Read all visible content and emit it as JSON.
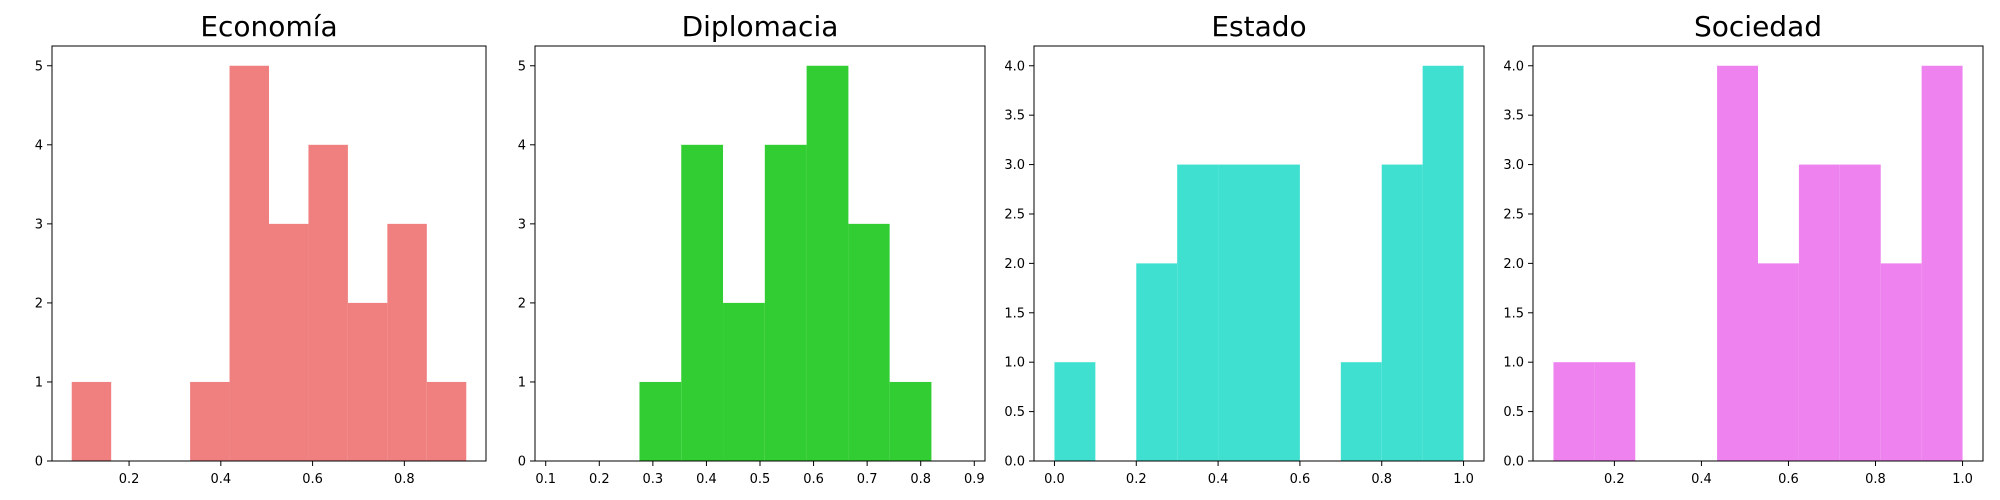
{
  "chart_data": [
    {
      "type": "bar",
      "title": "Economía",
      "color": "#f08080",
      "bins": [
        {
          "x0": 0.075,
          "x1": 0.161,
          "count": 1
        },
        {
          "x0": 0.161,
          "x1": 0.247,
          "count": 0
        },
        {
          "x0": 0.247,
          "x1": 0.333,
          "count": 0
        },
        {
          "x0": 0.333,
          "x1": 0.419,
          "count": 1
        },
        {
          "x0": 0.419,
          "x1": 0.505,
          "count": 5
        },
        {
          "x0": 0.505,
          "x1": 0.591,
          "count": 3
        },
        {
          "x0": 0.591,
          "x1": 0.677,
          "count": 4
        },
        {
          "x0": 0.677,
          "x1": 0.763,
          "count": 2
        },
        {
          "x0": 0.763,
          "x1": 0.849,
          "count": 3
        },
        {
          "x0": 0.849,
          "x1": 0.935,
          "count": 1
        }
      ],
      "xlim": [
        0.032,
        0.978
      ],
      "ylim": [
        0,
        5.25
      ],
      "xticks": [
        0.2,
        0.4,
        0.6,
        0.8
      ],
      "xtick_labels": [
        "0.2",
        "0.4",
        "0.6",
        "0.8"
      ],
      "yticks": [
        0,
        1,
        2,
        3,
        4,
        5
      ],
      "ytick_labels": [
        "0",
        "1",
        "2",
        "3",
        "4",
        "5"
      ]
    },
    {
      "type": "bar",
      "title": "Diplomacia",
      "color": "#32cd32",
      "bins": [
        {
          "x0": 0.275,
          "x1": 0.353,
          "count": 1
        },
        {
          "x0": 0.353,
          "x1": 0.431,
          "count": 4
        },
        {
          "x0": 0.431,
          "x1": 0.509,
          "count": 2
        },
        {
          "x0": 0.509,
          "x1": 0.587,
          "count": 4
        },
        {
          "x0": 0.587,
          "x1": 0.665,
          "count": 5
        },
        {
          "x0": 0.665,
          "x1": 0.742,
          "count": 3
        },
        {
          "x0": 0.742,
          "x1": 0.82,
          "count": 1
        }
      ],
      "xlim": [
        0.08,
        0.92
      ],
      "ylim": [
        0,
        5.25
      ],
      "xticks": [
        0.1,
        0.2,
        0.3,
        0.4,
        0.5,
        0.6,
        0.7,
        0.8,
        0.9
      ],
      "xtick_labels": [
        "0.1",
        "0.2",
        "0.3",
        "0.4",
        "0.5",
        "0.6",
        "0.7",
        "0.8",
        "0.9"
      ],
      "yticks": [
        0,
        1,
        2,
        3,
        4,
        5
      ],
      "ytick_labels": [
        "0",
        "1",
        "2",
        "3",
        "4",
        "5"
      ]
    },
    {
      "type": "bar",
      "title": "Estado",
      "color": "#40e0d0",
      "bins": [
        {
          "x0": 0.0,
          "x1": 0.1,
          "count": 1
        },
        {
          "x0": 0.1,
          "x1": 0.2,
          "count": 0
        },
        {
          "x0": 0.2,
          "x1": 0.3,
          "count": 2
        },
        {
          "x0": 0.3,
          "x1": 0.4,
          "count": 3
        },
        {
          "x0": 0.4,
          "x1": 0.5,
          "count": 3
        },
        {
          "x0": 0.5,
          "x1": 0.6,
          "count": 3
        },
        {
          "x0": 0.6,
          "x1": 0.7,
          "count": 0
        },
        {
          "x0": 0.7,
          "x1": 0.8,
          "count": 1
        },
        {
          "x0": 0.8,
          "x1": 0.9,
          "count": 3
        },
        {
          "x0": 0.9,
          "x1": 1.0,
          "count": 4
        }
      ],
      "xlim": [
        -0.05,
        1.05
      ],
      "ylim": [
        0,
        4.2
      ],
      "xticks": [
        0.0,
        0.2,
        0.4,
        0.6,
        0.8,
        1.0
      ],
      "xtick_labels": [
        "0.0",
        "0.2",
        "0.4",
        "0.6",
        "0.8",
        "1.0"
      ],
      "yticks": [
        0,
        0.5,
        1,
        1.5,
        2,
        2.5,
        3,
        3.5,
        4
      ],
      "ytick_labels": [
        "0.0",
        "0.5",
        "1.0",
        "1.5",
        "2.0",
        "2.5",
        "3.0",
        "3.5",
        "4.0"
      ]
    },
    {
      "type": "bar",
      "title": "Sociedad",
      "color": "#ee82ee",
      "bins": [
        {
          "x0": 0.06,
          "x1": 0.154,
          "count": 1
        },
        {
          "x0": 0.154,
          "x1": 0.248,
          "count": 1
        },
        {
          "x0": 0.248,
          "x1": 0.342,
          "count": 0
        },
        {
          "x0": 0.342,
          "x1": 0.436,
          "count": 0
        },
        {
          "x0": 0.436,
          "x1": 0.53,
          "count": 4
        },
        {
          "x0": 0.53,
          "x1": 0.624,
          "count": 2
        },
        {
          "x0": 0.624,
          "x1": 0.718,
          "count": 3
        },
        {
          "x0": 0.718,
          "x1": 0.812,
          "count": 3
        },
        {
          "x0": 0.812,
          "x1": 0.906,
          "count": 2
        },
        {
          "x0": 0.906,
          "x1": 1.0,
          "count": 4
        }
      ],
      "xlim": [
        0.013,
        1.047
      ],
      "ylim": [
        0,
        4.2
      ],
      "xticks": [
        0.2,
        0.4,
        0.6,
        0.8,
        1.0
      ],
      "xtick_labels": [
        "0.2",
        "0.4",
        "0.6",
        "0.8",
        "1.0"
      ],
      "yticks": [
        0,
        0.5,
        1,
        1.5,
        2,
        2.5,
        3,
        3.5,
        4
      ],
      "ytick_labels": [
        "0.0",
        "0.5",
        "1.0",
        "1.5",
        "2.0",
        "2.5",
        "3.0",
        "3.5",
        "4.0"
      ]
    }
  ]
}
